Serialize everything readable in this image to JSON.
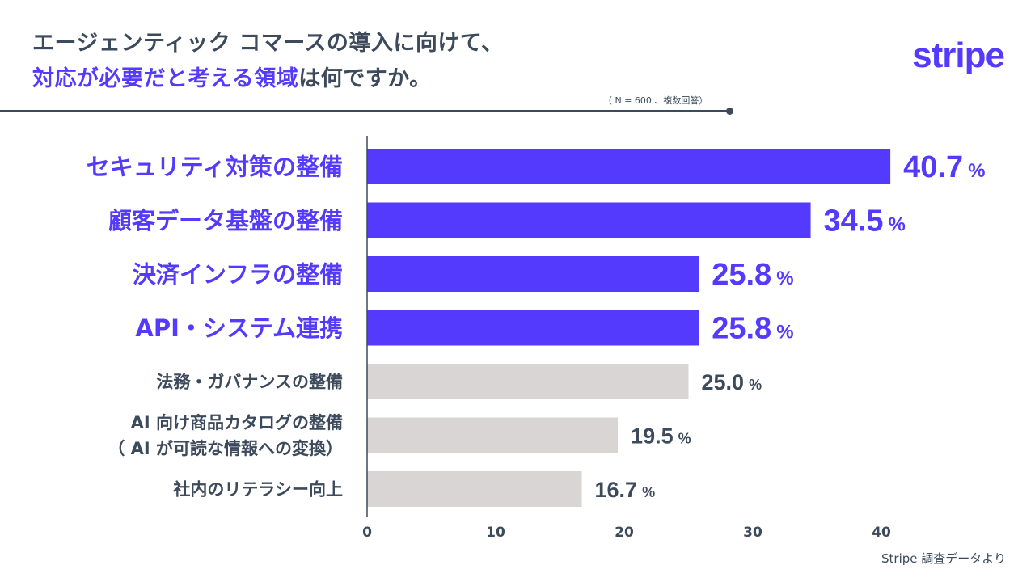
{
  "header": {
    "title_line1": "エージェンティック コマースの導入に向けて、",
    "title_line2_highlight": "対応が必要だと考える領域",
    "title_line2_rest": "は何ですか。",
    "note": "（ N = 600 、複数回答）",
    "logo": "stripe"
  },
  "source": "Stripe 調査データより",
  "colors": {
    "highlight": "#533afd",
    "muted": "#d9d5d5",
    "text": "#3d4a5c"
  },
  "chart_data": {
    "type": "bar",
    "orientation": "horizontal",
    "categories": [
      "セキュリティ対策の整備",
      "顧客データ基盤の整備",
      "決済インフラの整備",
      "API・システム連携",
      "法務・ガバナンスの整備",
      "AI 向け商品カタログの整備\n（ AI が可読な情報への変換）",
      "社内のリテラシー向上"
    ],
    "values": [
      40.7,
      34.5,
      25.8,
      25.8,
      25.0,
      19.5,
      16.7
    ],
    "highlighted": [
      true,
      true,
      true,
      true,
      false,
      false,
      false
    ],
    "value_suffix": "%",
    "xlim": [
      0,
      40
    ],
    "xticks": [
      0,
      10,
      20,
      30,
      40
    ],
    "grid": false
  }
}
